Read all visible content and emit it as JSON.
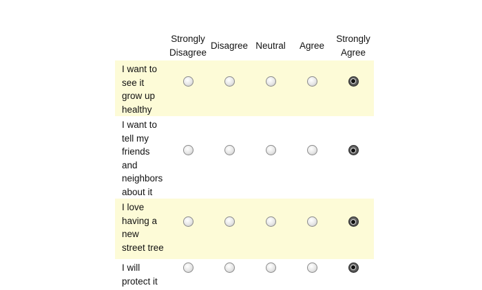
{
  "columns": [
    "Strongly Disagree",
    "Disagree",
    "Neutral",
    "Agree",
    "Strongly Agree"
  ],
  "rows": [
    {
      "label": "I want to see it grow up healthy",
      "selected": 4
    },
    {
      "label": "I want to tell my friends and neighbors about it",
      "selected": 4
    },
    {
      "label": "I love having a new street tree",
      "selected": 4
    },
    {
      "label": "I will protect it",
      "selected": 4
    }
  ]
}
